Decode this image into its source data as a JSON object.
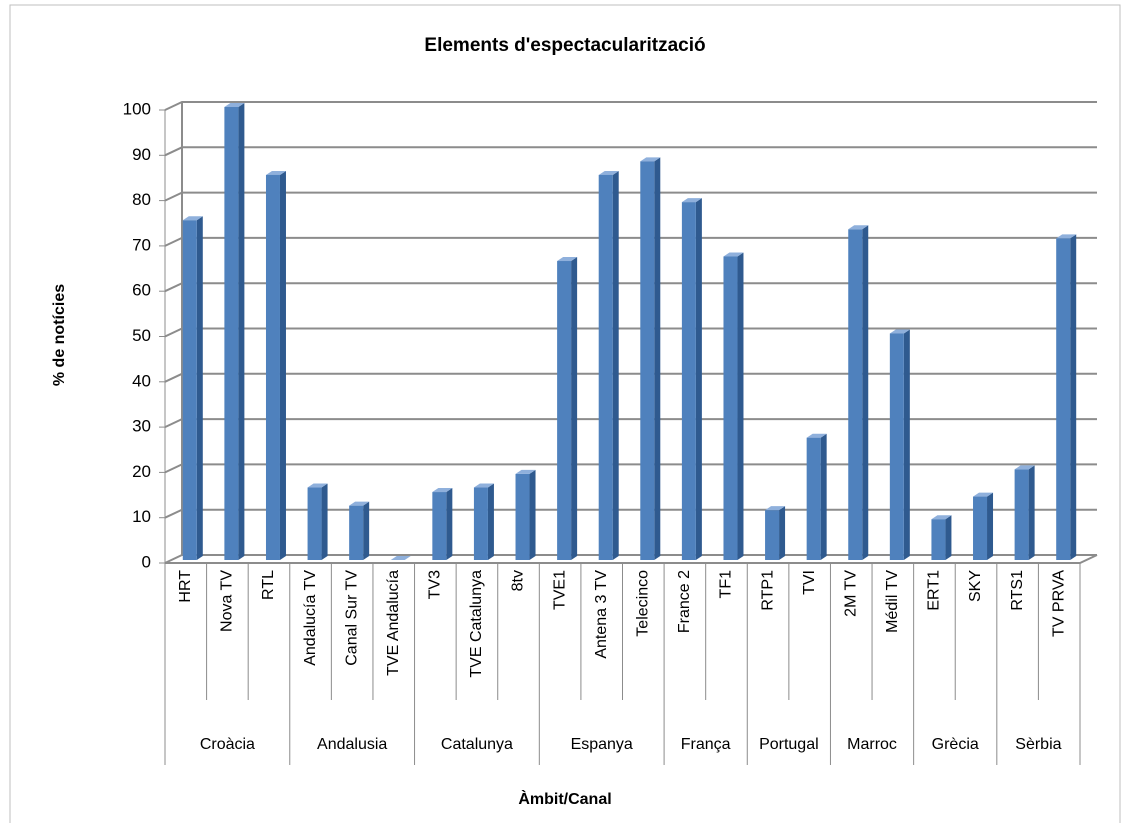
{
  "chart_data": {
    "type": "bar3d",
    "title": "Elements d'espectacularització",
    "y_label": "% de notícies",
    "x_label": "Àmbit/Canal",
    "color": "#4f81bd",
    "groups": [
      {
        "name": "Croàcia",
        "categories": [
          "HRT",
          "Nova TV",
          "RTL"
        ]
      },
      {
        "name": "Andalusia",
        "categories": [
          "Andalucía TV",
          "Canal Sur TV",
          "TVE Andalucía"
        ]
      },
      {
        "name": "Catalunya",
        "categories": [
          "TV3",
          "TVE Catalunya",
          "8tv"
        ]
      },
      {
        "name": "Espanya",
        "categories": [
          "TVE1",
          "Antena 3 TV",
          "Telecinco"
        ]
      },
      {
        "name": "França",
        "categories": [
          "France 2",
          "TF1"
        ]
      },
      {
        "name": "Portugal",
        "categories": [
          "RTP1",
          "TVI"
        ]
      },
      {
        "name": "Marroc",
        "categories": [
          "2M TV",
          "Médil TV"
        ]
      },
      {
        "name": "Grècia",
        "categories": [
          "ERT1",
          "SKY"
        ]
      },
      {
        "name": "Sèrbia",
        "categories": [
          "RTS1",
          "TV PRVA"
        ]
      }
    ],
    "values": [
      75,
      100,
      85,
      16,
      12,
      0,
      15,
      16,
      19,
      66,
      85,
      88,
      79,
      67,
      11,
      27,
      73,
      50,
      9,
      14,
      20,
      71
    ],
    "ylim": [
      0,
      100
    ],
    "yticks": [
      0,
      10,
      20,
      30,
      40,
      50,
      60,
      70,
      80,
      90,
      100
    ],
    "grid": true
  }
}
